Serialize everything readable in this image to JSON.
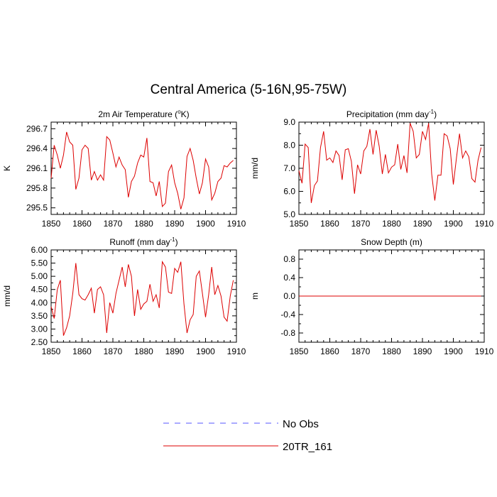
{
  "figure": {
    "title": "Central America (5-16N,95-75W)"
  },
  "legend": {
    "items": [
      {
        "label": "No Obs",
        "color": "#5555ff",
        "style": "dashed"
      },
      {
        "label": "20TR_161",
        "color": "#dd0000",
        "style": "solid"
      }
    ]
  },
  "chart_data": [
    {
      "type": "line",
      "title": "2m Air Temperature (°K)",
      "title_parts": [
        "2m Air Temperature (",
        "o",
        "K)"
      ],
      "ylabel": "K",
      "xlim": [
        1850,
        1910
      ],
      "ylim": [
        295.4,
        296.8
      ],
      "xticks": [
        1850,
        1860,
        1870,
        1880,
        1890,
        1900,
        1910
      ],
      "yticks": [
        295.5,
        295.8,
        296.1,
        296.4,
        296.7
      ],
      "ytick_labels": [
        "295.5",
        "295.8",
        "296.1",
        "296.4",
        "296.7"
      ],
      "series": [
        {
          "name": "20TR_161",
          "color": "#dd0000",
          "x": [
            1850,
            1851,
            1852,
            1853,
            1854,
            1855,
            1856,
            1857,
            1858,
            1859,
            1860,
            1861,
            1862,
            1863,
            1864,
            1865,
            1866,
            1867,
            1868,
            1869,
            1870,
            1871,
            1872,
            1873,
            1874,
            1875,
            1876,
            1877,
            1878,
            1879,
            1880,
            1881,
            1882,
            1883,
            1884,
            1885,
            1886,
            1887,
            1888,
            1889,
            1890,
            1891,
            1892,
            1893,
            1894,
            1895,
            1896,
            1897,
            1898,
            1899,
            1900,
            1901,
            1902,
            1903,
            1904,
            1905,
            1906,
            1907,
            1908,
            1909
          ],
          "y": [
            295.95,
            296.45,
            296.3,
            296.1,
            296.3,
            296.65,
            296.5,
            296.45,
            295.78,
            295.95,
            296.38,
            296.45,
            296.4,
            295.92,
            296.05,
            295.92,
            296.0,
            295.92,
            296.58,
            296.53,
            296.33,
            296.12,
            296.27,
            296.15,
            296.08,
            295.66,
            295.9,
            295.98,
            296.18,
            296.3,
            296.27,
            296.56,
            295.9,
            295.88,
            295.68,
            295.9,
            295.52,
            295.57,
            296.05,
            296.15,
            295.88,
            295.72,
            295.48,
            295.65,
            296.28,
            296.4,
            296.22,
            295.95,
            295.71,
            295.88,
            296.24,
            296.12,
            295.62,
            295.72,
            295.9,
            295.95,
            296.14,
            296.12,
            296.18,
            296.22
          ]
        }
      ]
    },
    {
      "type": "line",
      "title": "Precipitation (mm day⁻¹)",
      "title_parts": [
        "Precipitation (mm day",
        "-1",
        ")"
      ],
      "ylabel": "mm/d",
      "xlim": [
        1850,
        1910
      ],
      "ylim": [
        5.0,
        9.0
      ],
      "xticks": [
        1850,
        1860,
        1870,
        1880,
        1890,
        1900,
        1910
      ],
      "yticks": [
        5.0,
        6.0,
        7.0,
        8.0,
        9.0
      ],
      "ytick_labels": [
        "5.0",
        "6.0",
        "7.0",
        "8.0",
        "9.0"
      ],
      "series": [
        {
          "name": "20TR_161",
          "color": "#dd0000",
          "x": [
            1850,
            1851,
            1852,
            1853,
            1854,
            1855,
            1856,
            1857,
            1858,
            1859,
            1860,
            1861,
            1862,
            1863,
            1864,
            1865,
            1866,
            1867,
            1868,
            1869,
            1870,
            1871,
            1872,
            1873,
            1874,
            1875,
            1876,
            1877,
            1878,
            1879,
            1880,
            1881,
            1882,
            1883,
            1884,
            1885,
            1886,
            1887,
            1888,
            1889,
            1890,
            1891,
            1892,
            1893,
            1894,
            1895,
            1896,
            1897,
            1898,
            1899,
            1900,
            1901,
            1902,
            1903,
            1904,
            1905,
            1906,
            1907,
            1908,
            1909
          ],
          "y": [
            6.9,
            6.35,
            8.05,
            7.9,
            5.5,
            6.25,
            6.45,
            7.9,
            8.6,
            7.35,
            7.45,
            7.25,
            7.75,
            7.55,
            6.5,
            7.8,
            7.85,
            7.3,
            5.9,
            7.15,
            6.75,
            7.75,
            7.95,
            8.7,
            7.6,
            8.65,
            7.95,
            6.75,
            7.6,
            6.8,
            7.05,
            7.15,
            8.05,
            6.95,
            7.55,
            6.8,
            8.95,
            8.6,
            7.45,
            7.6,
            8.6,
            8.25,
            8.95,
            6.75,
            5.6,
            6.7,
            6.7,
            8.5,
            8.4,
            7.85,
            6.3,
            7.45,
            8.5,
            7.45,
            7.75,
            7.5,
            6.55,
            6.4,
            7.35,
            7.9
          ]
        }
      ]
    },
    {
      "type": "line",
      "title": "Runoff (mm day⁻¹)",
      "title_parts": [
        "Runoff (mm day",
        "-1",
        ")"
      ],
      "ylabel": "mm/d",
      "xlim": [
        1850,
        1910
      ],
      "ylim": [
        2.5,
        6.0
      ],
      "xticks": [
        1850,
        1860,
        1870,
        1880,
        1890,
        1900,
        1910
      ],
      "yticks": [
        2.5,
        3.0,
        3.5,
        4.0,
        4.5,
        5.0,
        5.5,
        6.0
      ],
      "ytick_labels": [
        "2.50",
        "3.00",
        "3.50",
        "4.00",
        "4.50",
        "5.00",
        "5.50",
        "6.00"
      ],
      "series": [
        {
          "name": "20TR_161",
          "color": "#dd0000",
          "x": [
            1850,
            1851,
            1852,
            1853,
            1854,
            1855,
            1856,
            1857,
            1858,
            1859,
            1860,
            1861,
            1862,
            1863,
            1864,
            1865,
            1866,
            1867,
            1868,
            1869,
            1870,
            1871,
            1872,
            1873,
            1874,
            1875,
            1876,
            1877,
            1878,
            1879,
            1880,
            1881,
            1882,
            1883,
            1884,
            1885,
            1886,
            1887,
            1888,
            1889,
            1890,
            1891,
            1892,
            1893,
            1894,
            1895,
            1896,
            1897,
            1898,
            1899,
            1900,
            1901,
            1902,
            1903,
            1904,
            1905,
            1906,
            1907,
            1908,
            1909
          ],
          "y": [
            3.85,
            3.4,
            4.5,
            4.85,
            2.75,
            3.05,
            3.5,
            4.35,
            5.5,
            4.3,
            4.15,
            4.1,
            4.3,
            4.55,
            3.6,
            4.5,
            4.6,
            4.3,
            2.85,
            4.0,
            3.6,
            4.35,
            4.85,
            5.35,
            4.6,
            5.45,
            5.0,
            3.5,
            4.5,
            3.75,
            3.95,
            4.05,
            4.7,
            4.05,
            4.3,
            3.8,
            5.55,
            5.35,
            4.4,
            4.35,
            5.3,
            5.15,
            5.55,
            3.95,
            2.85,
            3.35,
            3.55,
            5.0,
            5.2,
            4.35,
            3.45,
            4.3,
            5.35,
            4.3,
            4.65,
            4.25,
            3.45,
            3.3,
            4.25,
            4.85
          ]
        }
      ]
    },
    {
      "type": "line",
      "title": "Snow Depth (m)",
      "title_parts": [
        "Snow Depth (m)",
        "",
        ""
      ],
      "ylabel": "m",
      "xlim": [
        1850,
        1910
      ],
      "ylim": [
        -1.0,
        1.0
      ],
      "xticks": [
        1850,
        1860,
        1870,
        1880,
        1890,
        1900,
        1910
      ],
      "yticks": [
        -0.8,
        -0.4,
        0.0,
        0.4,
        0.8
      ],
      "ytick_labels": [
        "-0.8",
        "-0.4",
        "0.0",
        "0.4",
        "0.8"
      ],
      "series": [
        {
          "name": "20TR_161",
          "color": "#dd0000",
          "x": [
            1850,
            1909
          ],
          "y": [
            0.0,
            0.0
          ]
        }
      ]
    }
  ]
}
